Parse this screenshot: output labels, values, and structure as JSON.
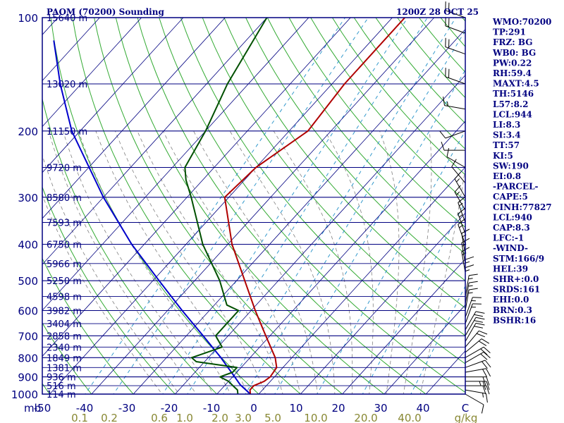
{
  "chart_data": {
    "type": "skew-t",
    "title": "PAOM (70200) Sounding",
    "time": "1200Z 28 OCT 25",
    "yunit": "mb",
    "xunit": "C",
    "mixunit": "g/kg",
    "pressure_ticks": [
      100,
      200,
      300,
      400,
      500,
      600,
      700,
      800,
      900,
      1000
    ],
    "pressure_labels": [
      "100",
      "200",
      "300",
      "400",
      "500",
      "600",
      "700",
      "800",
      "900",
      "1000"
    ],
    "temp_ticks": [
      -50,
      -40,
      -30,
      -20,
      -10,
      0,
      10,
      20,
      30,
      40
    ],
    "temp_labels": [
      "-50",
      "-40",
      "-30",
      "-20",
      "-10",
      "0",
      "10",
      "20",
      "30",
      "40"
    ],
    "mixing_ratios": [
      0.1,
      0.2,
      0.6,
      1.0,
      2.0,
      3.0,
      5.0,
      10.0,
      20.0,
      40.0
    ],
    "mixing_labels": [
      "0.1",
      "0.2",
      "0.6",
      "1.0",
      "2.0",
      "3.0",
      "5.0",
      "10.0",
      "20.0",
      "40.0"
    ],
    "heights": [
      {
        "p": 100,
        "label": "15640 m"
      },
      {
        "p": 150,
        "label": "13020 m"
      },
      {
        "p": 200,
        "label": "11150 m"
      },
      {
        "p": 250,
        "label": "9720 m"
      },
      {
        "p": 300,
        "label": "8580 m"
      },
      {
        "p": 350,
        "label": "7593 m"
      },
      {
        "p": 400,
        "label": "6750 m"
      },
      {
        "p": 450,
        "label": "5966 m"
      },
      {
        "p": 500,
        "label": "5250 m"
      },
      {
        "p": 550,
        "label": "4598 m"
      },
      {
        "p": 600,
        "label": "3982 m"
      },
      {
        "p": 650,
        "label": "3404 m"
      },
      {
        "p": 700,
        "label": "2858 m"
      },
      {
        "p": 750,
        "label": "2340 m"
      },
      {
        "p": 800,
        "label": "1849 m"
      },
      {
        "p": 850,
        "label": "1381 m"
      },
      {
        "p": 900,
        "label": "936 m"
      },
      {
        "p": 950,
        "label": "516 m"
      },
      {
        "p": 1000,
        "label": "114 m"
      }
    ],
    "temperature": [
      {
        "p": 1000,
        "t": -2.0
      },
      {
        "p": 975,
        "t": -3.0
      },
      {
        "p": 950,
        "t": -3.0
      },
      {
        "p": 925,
        "t": -1.5
      },
      {
        "p": 900,
        "t": -1.0
      },
      {
        "p": 850,
        "t": -1.5
      },
      {
        "p": 800,
        "t": -4.0
      },
      {
        "p": 700,
        "t": -11.0
      },
      {
        "p": 600,
        "t": -19.0
      },
      {
        "p": 500,
        "t": -28.0
      },
      {
        "p": 400,
        "t": -39.0
      },
      {
        "p": 300,
        "t": -51.0
      },
      {
        "p": 250,
        "t": -50.0
      },
      {
        "p": 200,
        "t": -45.5
      },
      {
        "p": 150,
        "t": -47.0
      },
      {
        "p": 100,
        "t": -47.0
      }
    ],
    "dewpoint": [
      {
        "p": 1000,
        "t": -5.0
      },
      {
        "p": 975,
        "t": -6.0
      },
      {
        "p": 950,
        "t": -8.0
      },
      {
        "p": 925,
        "t": -10.0
      },
      {
        "p": 900,
        "t": -13.0
      },
      {
        "p": 875,
        "t": -11.0
      },
      {
        "p": 850,
        "t": -11.0
      },
      {
        "p": 820,
        "t": -22.0
      },
      {
        "p": 800,
        "t": -24.0
      },
      {
        "p": 780,
        "t": -22.0
      },
      {
        "p": 750,
        "t": -19.0
      },
      {
        "p": 700,
        "t": -23.0
      },
      {
        "p": 650,
        "t": -23.0
      },
      {
        "p": 600,
        "t": -23.0
      },
      {
        "p": 580,
        "t": -27.0
      },
      {
        "p": 500,
        "t": -34.0
      },
      {
        "p": 400,
        "t": -46.0
      },
      {
        "p": 300,
        "t": -59.0
      },
      {
        "p": 270,
        "t": -64.0
      },
      {
        "p": 250,
        "t": -67.0
      },
      {
        "p": 200,
        "t": -70.0
      },
      {
        "p": 150,
        "t": -75.0
      },
      {
        "p": 100,
        "t": -80.0
      }
    ],
    "parcel": [
      {
        "p": 1000,
        "t": -2.0
      },
      {
        "p": 944,
        "t": -6.5
      },
      {
        "p": 900,
        "t": -9.5
      },
      {
        "p": 800,
        "t": -17.0
      },
      {
        "p": 700,
        "t": -26.0
      },
      {
        "p": 600,
        "t": -36.5
      },
      {
        "p": 500,
        "t": -48.5
      },
      {
        "p": 400,
        "t": -63.0
      },
      {
        "p": 300,
        "t": -80.0
      },
      {
        "p": 200,
        "t": -102.0
      },
      {
        "p": 150,
        "t": -115.0
      },
      {
        "p": 115,
        "t": -126.0
      }
    ],
    "winds": [
      {
        "p": 1000,
        "dir": 120,
        "spd": 10
      },
      {
        "p": 975,
        "dir": 100,
        "spd": 15
      },
      {
        "p": 950,
        "dir": 90,
        "spd": 20
      },
      {
        "p": 925,
        "dir": 90,
        "spd": 25
      },
      {
        "p": 900,
        "dir": 90,
        "spd": 20
      },
      {
        "p": 875,
        "dir": 80,
        "spd": 20
      },
      {
        "p": 850,
        "dir": 70,
        "spd": 20
      },
      {
        "p": 825,
        "dir": 60,
        "spd": 20
      },
      {
        "p": 800,
        "dir": 60,
        "spd": 20
      },
      {
        "p": 775,
        "dir": 50,
        "spd": 20
      },
      {
        "p": 750,
        "dir": 40,
        "spd": 20
      },
      {
        "p": 725,
        "dir": 30,
        "spd": 20
      },
      {
        "p": 700,
        "dir": 30,
        "spd": 20
      },
      {
        "p": 675,
        "dir": 30,
        "spd": 20
      },
      {
        "p": 650,
        "dir": 20,
        "spd": 15
      },
      {
        "p": 625,
        "dir": 20,
        "spd": 15
      },
      {
        "p": 600,
        "dir": 10,
        "spd": 15
      },
      {
        "p": 575,
        "dir": 10,
        "spd": 15
      },
      {
        "p": 550,
        "dir": 10,
        "spd": 15
      },
      {
        "p": 525,
        "dir": 0,
        "spd": 15
      },
      {
        "p": 500,
        "dir": 0,
        "spd": 15
      },
      {
        "p": 475,
        "dir": 350,
        "spd": 15
      },
      {
        "p": 450,
        "dir": 350,
        "spd": 15
      },
      {
        "p": 425,
        "dir": 350,
        "spd": 15
      },
      {
        "p": 400,
        "dir": 340,
        "spd": 15
      },
      {
        "p": 375,
        "dir": 340,
        "spd": 15
      },
      {
        "p": 350,
        "dir": 340,
        "spd": 15
      },
      {
        "p": 325,
        "dir": 330,
        "spd": 15
      },
      {
        "p": 300,
        "dir": 330,
        "spd": 15
      },
      {
        "p": 275,
        "dir": 320,
        "spd": 10
      },
      {
        "p": 250,
        "dir": 300,
        "spd": 10
      },
      {
        "p": 225,
        "dir": 270,
        "spd": 10
      },
      {
        "p": 200,
        "dir": 250,
        "spd": 10
      },
      {
        "p": 175,
        "dir": 280,
        "spd": 15
      },
      {
        "p": 150,
        "dir": 290,
        "spd": 20
      },
      {
        "p": 125,
        "dir": 290,
        "spd": 20
      },
      {
        "p": 110,
        "dir": 290,
        "spd": 20
      },
      {
        "p": 100,
        "dir": 290,
        "spd": 20
      }
    ],
    "indices": [
      "WMO:70200",
      "TP:291",
      "FRZ: BG",
      "WB0: BG",
      "PW:0.22",
      "RH:59.4",
      "MAXT:4.5",
      "TH:5146",
      "L57:8.2",
      "LCL:944",
      "LI:8.3",
      "SI:3.4",
      "TT:57",
      "KI:5",
      "SW:190",
      "EI:0.8",
      "-PARCEL-",
      "CAPE:5",
      "CINH:77827",
      "LCL:940",
      "CAP:8.3",
      "LFC:-1",
      "-WIND-",
      "STM:166/9",
      "HEL:39",
      "SHR+:0.0",
      "SRDS:161",
      "EHI:0.0",
      "BRN:0.3",
      "BSHR:16"
    ]
  },
  "colors": {
    "isobar": "#000080",
    "isotherm": "#000080",
    "dry_adiabat": "#33aa33",
    "mixing_ratio": "#3399cc",
    "moist_adiabat": "#808080",
    "temperature": "#b00000",
    "dewpoint": "#005000",
    "parcel": "#0000cc",
    "wind_barb": "#000000",
    "text": "#000080",
    "mix_text": "#888833"
  }
}
